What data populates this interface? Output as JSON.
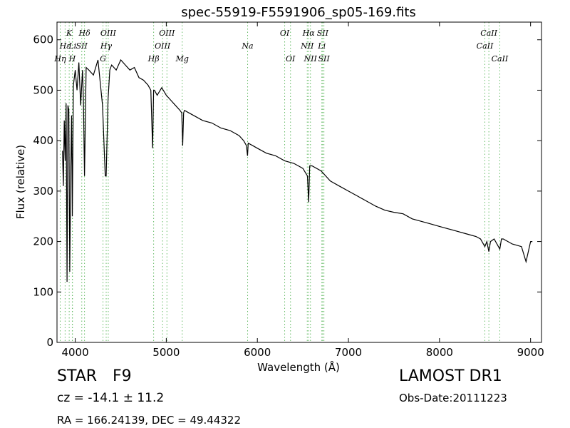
{
  "chart_data": {
    "type": "line",
    "title": "spec-55919-F5591906_sp05-169.fits",
    "xlabel": "Wavelength (Å)",
    "ylabel": "Flux (relative)",
    "xlim": [
      3800,
      9120
    ],
    "ylim": [
      0,
      635
    ],
    "xticks": [
      4000,
      5000,
      6000,
      7000,
      8000,
      9000
    ],
    "yticks": [
      0,
      100,
      200,
      300,
      400,
      500,
      600
    ],
    "grid": false,
    "line_color": "#000000",
    "marker_color": "#66bb66",
    "series": [
      {
        "x": [
          3860,
          3870,
          3880,
          3890,
          3900,
          3910,
          3920,
          3930,
          3940,
          3950,
          3960,
          3968,
          3980,
          4000,
          4020,
          4040,
          4060,
          4080,
          4090,
          4102,
          4120,
          4150,
          4200,
          4250,
          4300,
          4330,
          4340,
          4360,
          4380,
          4400,
          4450,
          4500,
          4550,
          4600,
          4650,
          4700,
          4750,
          4800,
          4830,
          4850,
          4861,
          4870,
          4900,
          4950,
          5000,
          5050,
          5100,
          5150,
          5170,
          5180,
          5190,
          5200,
          5250,
          5300,
          5400,
          5500,
          5600,
          5700,
          5800,
          5850,
          5880,
          5892,
          5900,
          5950,
          6000,
          6100,
          6200,
          6300,
          6400,
          6450,
          6500,
          6550,
          6563,
          6575,
          6600,
          6700,
          6800,
          6900,
          7000,
          7100,
          7200,
          7300,
          7400,
          7500,
          7600,
          7700,
          7800,
          7900,
          8000,
          8100,
          8200,
          8300,
          8400,
          8450,
          8498,
          8520,
          8542,
          8560,
          8600,
          8662,
          8680,
          8700,
          8800,
          8900,
          8950,
          9000,
          9020
        ],
        "y": [
          380,
          310,
          440,
          360,
          474,
          120,
          470,
          460,
          140,
          330,
          450,
          250,
          510,
          540,
          500,
          555,
          470,
          540,
          480,
          330,
          545,
          540,
          530,
          560,
          470,
          330,
          330,
          480,
          540,
          550,
          540,
          560,
          550,
          540,
          545,
          525,
          520,
          510,
          500,
          385,
          500,
          500,
          490,
          505,
          490,
          480,
          470,
          460,
          455,
          390,
          455,
          460,
          455,
          450,
          440,
          435,
          425,
          420,
          410,
          400,
          390,
          370,
          395,
          390,
          385,
          375,
          370,
          360,
          355,
          350,
          345,
          330,
          278,
          350,
          350,
          340,
          320,
          310,
          300,
          290,
          280,
          270,
          262,
          258,
          255,
          245,
          240,
          235,
          230,
          225,
          220,
          215,
          210,
          205,
          190,
          200,
          180,
          200,
          205,
          185,
          205,
          205,
          195,
          190,
          160,
          200,
          200
        ]
      }
    ],
    "lines": [
      {
        "label": "K",
        "wavelength": 3934
      },
      {
        "label": "Hδ",
        "wavelength": 4102
      },
      {
        "label": "OIII",
        "wavelength": 4363
      },
      {
        "label": "OIII",
        "wavelength": 5007
      },
      {
        "label": "OI",
        "wavelength": 6300
      },
      {
        "label": "Hα",
        "wavelength": 6563
      },
      {
        "label": "SII",
        "wavelength": 6717
      },
      {
        "label": "CaII",
        "wavelength": 8542
      },
      {
        "label": "Hε",
        "wavelength": 3889
      },
      {
        "label": "Li",
        "wavelength": 3970
      },
      {
        "label": "SII",
        "wavelength": 4072
      },
      {
        "label": "Hγ",
        "wavelength": 4340
      },
      {
        "label": "OIII",
        "wavelength": 4959
      },
      {
        "label": "Na",
        "wavelength": 5893
      },
      {
        "label": "NII",
        "wavelength": 6548
      },
      {
        "label": "Li",
        "wavelength": 6708
      },
      {
        "label": "CaII",
        "wavelength": 8498
      },
      {
        "label": "Hη",
        "wavelength": 3835
      },
      {
        "label": "H",
        "wavelength": 3968
      },
      {
        "label": "G",
        "wavelength": 4305
      },
      {
        "label": "Hβ",
        "wavelength": 4861
      },
      {
        "label": "Mg",
        "wavelength": 5175
      },
      {
        "label": "OI",
        "wavelength": 6364
      },
      {
        "label": "NII",
        "wavelength": 6583
      },
      {
        "label": "SII",
        "wavelength": 6731
      },
      {
        "label": "CaII",
        "wavelength": 8662
      }
    ]
  },
  "info": {
    "object_class": "STAR",
    "subclass": "F9",
    "cz": "cz = -14.1 ± 11.2",
    "coords": "RA = 166.24139, DEC = 49.44322",
    "survey": "LAMOST DR1",
    "obs_date": "Obs-Date:20111223"
  }
}
